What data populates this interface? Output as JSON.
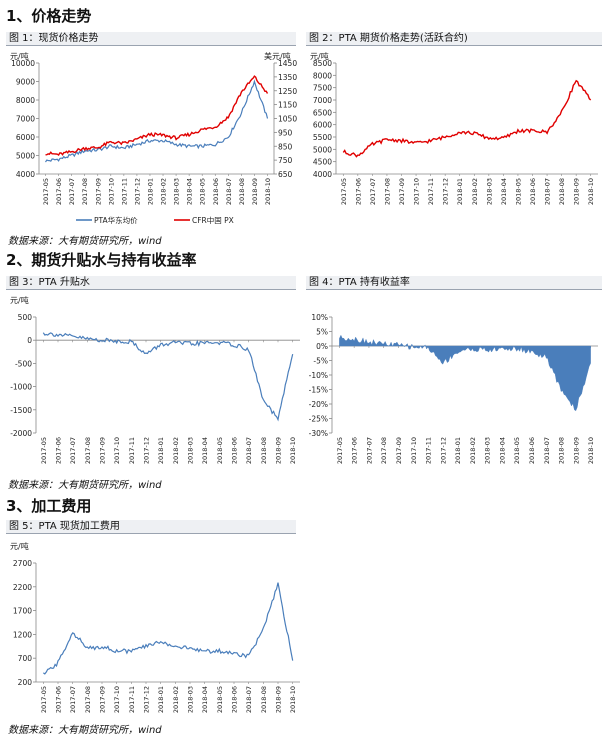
{
  "sections": {
    "s1": "1、价格走势",
    "s2": "2、期货升贴水与持有收益率",
    "s3": "3、加工费用"
  },
  "captions": {
    "f1": "图 1：现货价格走势",
    "f2": "图 2：PTA 期货价格走势(活跃合约)",
    "f3": "图 3：PTA 升贴水",
    "f4": "图 4：PTA 持有收益率",
    "f5": "图 5：PTA 现货加工费用"
  },
  "source": "数据来源：大有期货研究所，wind",
  "chart_data": [
    {
      "id": "fig1",
      "type": "line",
      "x": [
        "2017-05",
        "2017-06",
        "2017-07",
        "2017-08",
        "2017-09",
        "2017-10",
        "2017-11",
        "2017-12",
        "2018-01",
        "2018-02",
        "2018-03",
        "2018-04",
        "2018-05",
        "2018-06",
        "2018-07",
        "2018-08",
        "2018-09",
        "2018-10"
      ],
      "ylabel": "元/吨",
      "ylabel_right": "美元/吨",
      "ylim": [
        4000,
        10000
      ],
      "yticks": [
        4000,
        5000,
        6000,
        7000,
        8000,
        9000,
        10000
      ],
      "ylim_right": [
        650,
        1450
      ],
      "yticks_right": [
        650,
        750,
        850,
        950,
        1050,
        1150,
        1250,
        1350,
        1450
      ],
      "legend_position": "bottom",
      "series": [
        {
          "name": "PTA华东均价",
          "axis": "left",
          "color": "#4a7ebb",
          "values": [
            4700,
            4800,
            5000,
            5250,
            5300,
            5500,
            5400,
            5600,
            5800,
            5800,
            5600,
            5500,
            5500,
            5600,
            6000,
            7300,
            9000,
            7000
          ]
        },
        {
          "name": "CFR中国 PX",
          "axis": "right",
          "color": "#e00000",
          "values": [
            800,
            790,
            810,
            835,
            840,
            880,
            870,
            900,
            935,
            930,
            910,
            935,
            970,
            990,
            1060,
            1240,
            1350,
            1230
          ]
        }
      ]
    },
    {
      "id": "fig2",
      "type": "line",
      "x": [
        "2017-05",
        "2017-06",
        "2017-07",
        "2017-08",
        "2017-09",
        "2017-10",
        "2017-11",
        "2017-12",
        "2018-01",
        "2018-02",
        "2018-03",
        "2018-04",
        "2018-05",
        "2018-06",
        "2018-07",
        "2018-08",
        "2018-09",
        "2018-10"
      ],
      "ylabel": "元/吨",
      "ylim": [
        4000,
        8500
      ],
      "yticks": [
        4000,
        4500,
        5000,
        5500,
        6000,
        6500,
        7000,
        7500,
        8000,
        8500
      ],
      "series": [
        {
          "color": "#e00000",
          "values": [
            4900,
            4750,
            5200,
            5400,
            5350,
            5250,
            5350,
            5500,
            5700,
            5650,
            5450,
            5450,
            5750,
            5750,
            5700,
            6500,
            7800,
            7000
          ]
        }
      ]
    },
    {
      "id": "fig3",
      "type": "line",
      "x": [
        "2017-05",
        "2017-06",
        "2017-07",
        "2017-08",
        "2017-09",
        "2017-10",
        "2017-11",
        "2017-12",
        "2018-01",
        "2018-02",
        "2018-03",
        "2018-04",
        "2018-05",
        "2018-06",
        "2018-07",
        "2018-08",
        "2018-09",
        "2018-10"
      ],
      "ylabel": "元/吨",
      "ylim": [
        -2000,
        500
      ],
      "yticks": [
        -2000,
        -1500,
        -1000,
        -500,
        0,
        500
      ],
      "series": [
        {
          "color": "#4a7ebb",
          "values": [
            150,
            120,
            80,
            30,
            0,
            -20,
            -30,
            -300,
            -100,
            -50,
            -80,
            -60,
            -50,
            -100,
            -200,
            -1300,
            -1700,
            -300
          ]
        }
      ]
    },
    {
      "id": "fig4",
      "type": "area",
      "x": [
        "2017-05",
        "2017-06",
        "2017-07",
        "2017-08",
        "2017-09",
        "2017-10",
        "2017-11",
        "2017-12",
        "2018-01",
        "2018-02",
        "2018-03",
        "2018-04",
        "2018-05",
        "2018-06",
        "2018-07",
        "2018-08",
        "2018-09",
        "2018-10"
      ],
      "ylim": [
        -30,
        10
      ],
      "yticks": [
        -30,
        -25,
        -20,
        -15,
        -10,
        -5,
        0,
        5,
        10
      ],
      "unit": "%",
      "series": [
        {
          "color": "#4a7ebb",
          "values": [
            3,
            2.5,
            1.5,
            0.8,
            0.3,
            -0.3,
            -0.5,
            -6,
            -2,
            -1,
            -1.5,
            -1,
            -1,
            -2,
            -4,
            -15,
            -22,
            -6
          ]
        }
      ]
    },
    {
      "id": "fig5",
      "type": "line",
      "x": [
        "2017-05",
        "2017-06",
        "2017-07",
        "2017-08",
        "2017-09",
        "2017-10",
        "2017-11",
        "2017-12",
        "2018-01",
        "2018-02",
        "2018-03",
        "2018-04",
        "2018-05",
        "2018-06",
        "2018-07",
        "2018-08",
        "2018-09",
        "2018-10"
      ],
      "ylabel": "元/吨",
      "ylim": [
        200,
        2700
      ],
      "yticks": [
        200,
        700,
        1200,
        1700,
        2200,
        2700
      ],
      "series": [
        {
          "color": "#4a7ebb",
          "values": [
            350,
            600,
            1250,
            900,
            950,
            850,
            850,
            950,
            1050,
            950,
            900,
            850,
            850,
            800,
            750,
            1300,
            2250,
            650
          ]
        }
      ]
    }
  ]
}
